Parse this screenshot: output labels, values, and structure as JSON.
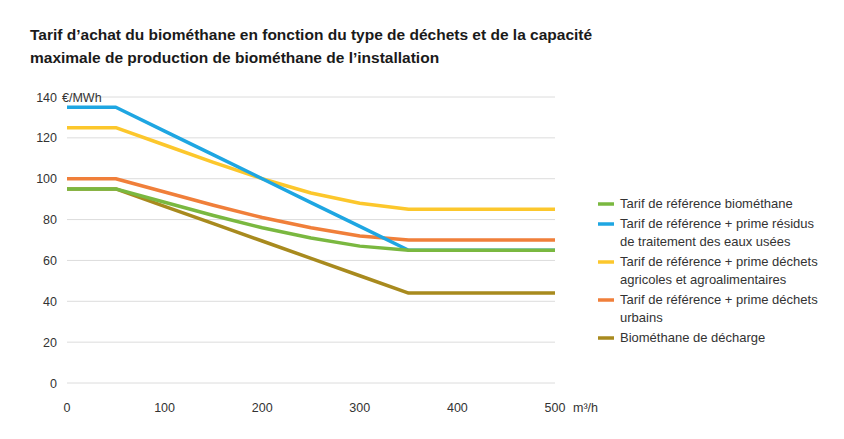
{
  "chart_data": {
    "type": "line",
    "title": "Tarif d’achat du biométhane en fonction du type de déchets et de la capacité maximale de production de biométhane de l’installation",
    "x_label": "m³/h",
    "y_label": "€/MWh",
    "x": [
      0,
      50,
      100,
      150,
      200,
      250,
      300,
      350,
      400,
      450,
      500
    ],
    "series": [
      {
        "name": "Tarif de référence biométhane",
        "color": "#7ab840",
        "values": [
          95,
          95,
          88.5,
          82,
          76,
          71,
          67,
          65,
          65,
          65,
          65
        ]
      },
      {
        "name": "Tarif de référence + prime résidus de traitement des eaux usées",
        "color": "#1ea6e2",
        "values": [
          135,
          135,
          123.3,
          111.7,
          100,
          88.3,
          76.7,
          65,
          65,
          65,
          65
        ]
      },
      {
        "name": "Tarif de référence + prime déchets agricoles et agroalimentaires",
        "color": "#fcc72c",
        "values": [
          125,
          125,
          116.5,
          108,
          100,
          93,
          88,
          85,
          85,
          85,
          85
        ]
      },
      {
        "name": "Tarif de référence + prime déchets urbains",
        "color": "#f07f3a",
        "values": [
          100,
          100,
          93.5,
          87,
          81,
          76,
          72,
          70,
          70,
          70,
          70
        ]
      },
      {
        "name": "Biométhane de décharge",
        "color": "#a88a1e",
        "values": [
          95,
          95,
          86.5,
          78,
          69.5,
          61,
          52.5,
          44,
          44,
          44,
          44
        ]
      }
    ],
    "xlim": [
      0,
      500
    ],
    "xticks": [
      0,
      100,
      200,
      300,
      400,
      500
    ],
    "ylim": [
      0,
      140
    ],
    "yticks": [
      0,
      20,
      40,
      60,
      80,
      100,
      120,
      140
    ],
    "grid": true,
    "legend": "right"
  }
}
